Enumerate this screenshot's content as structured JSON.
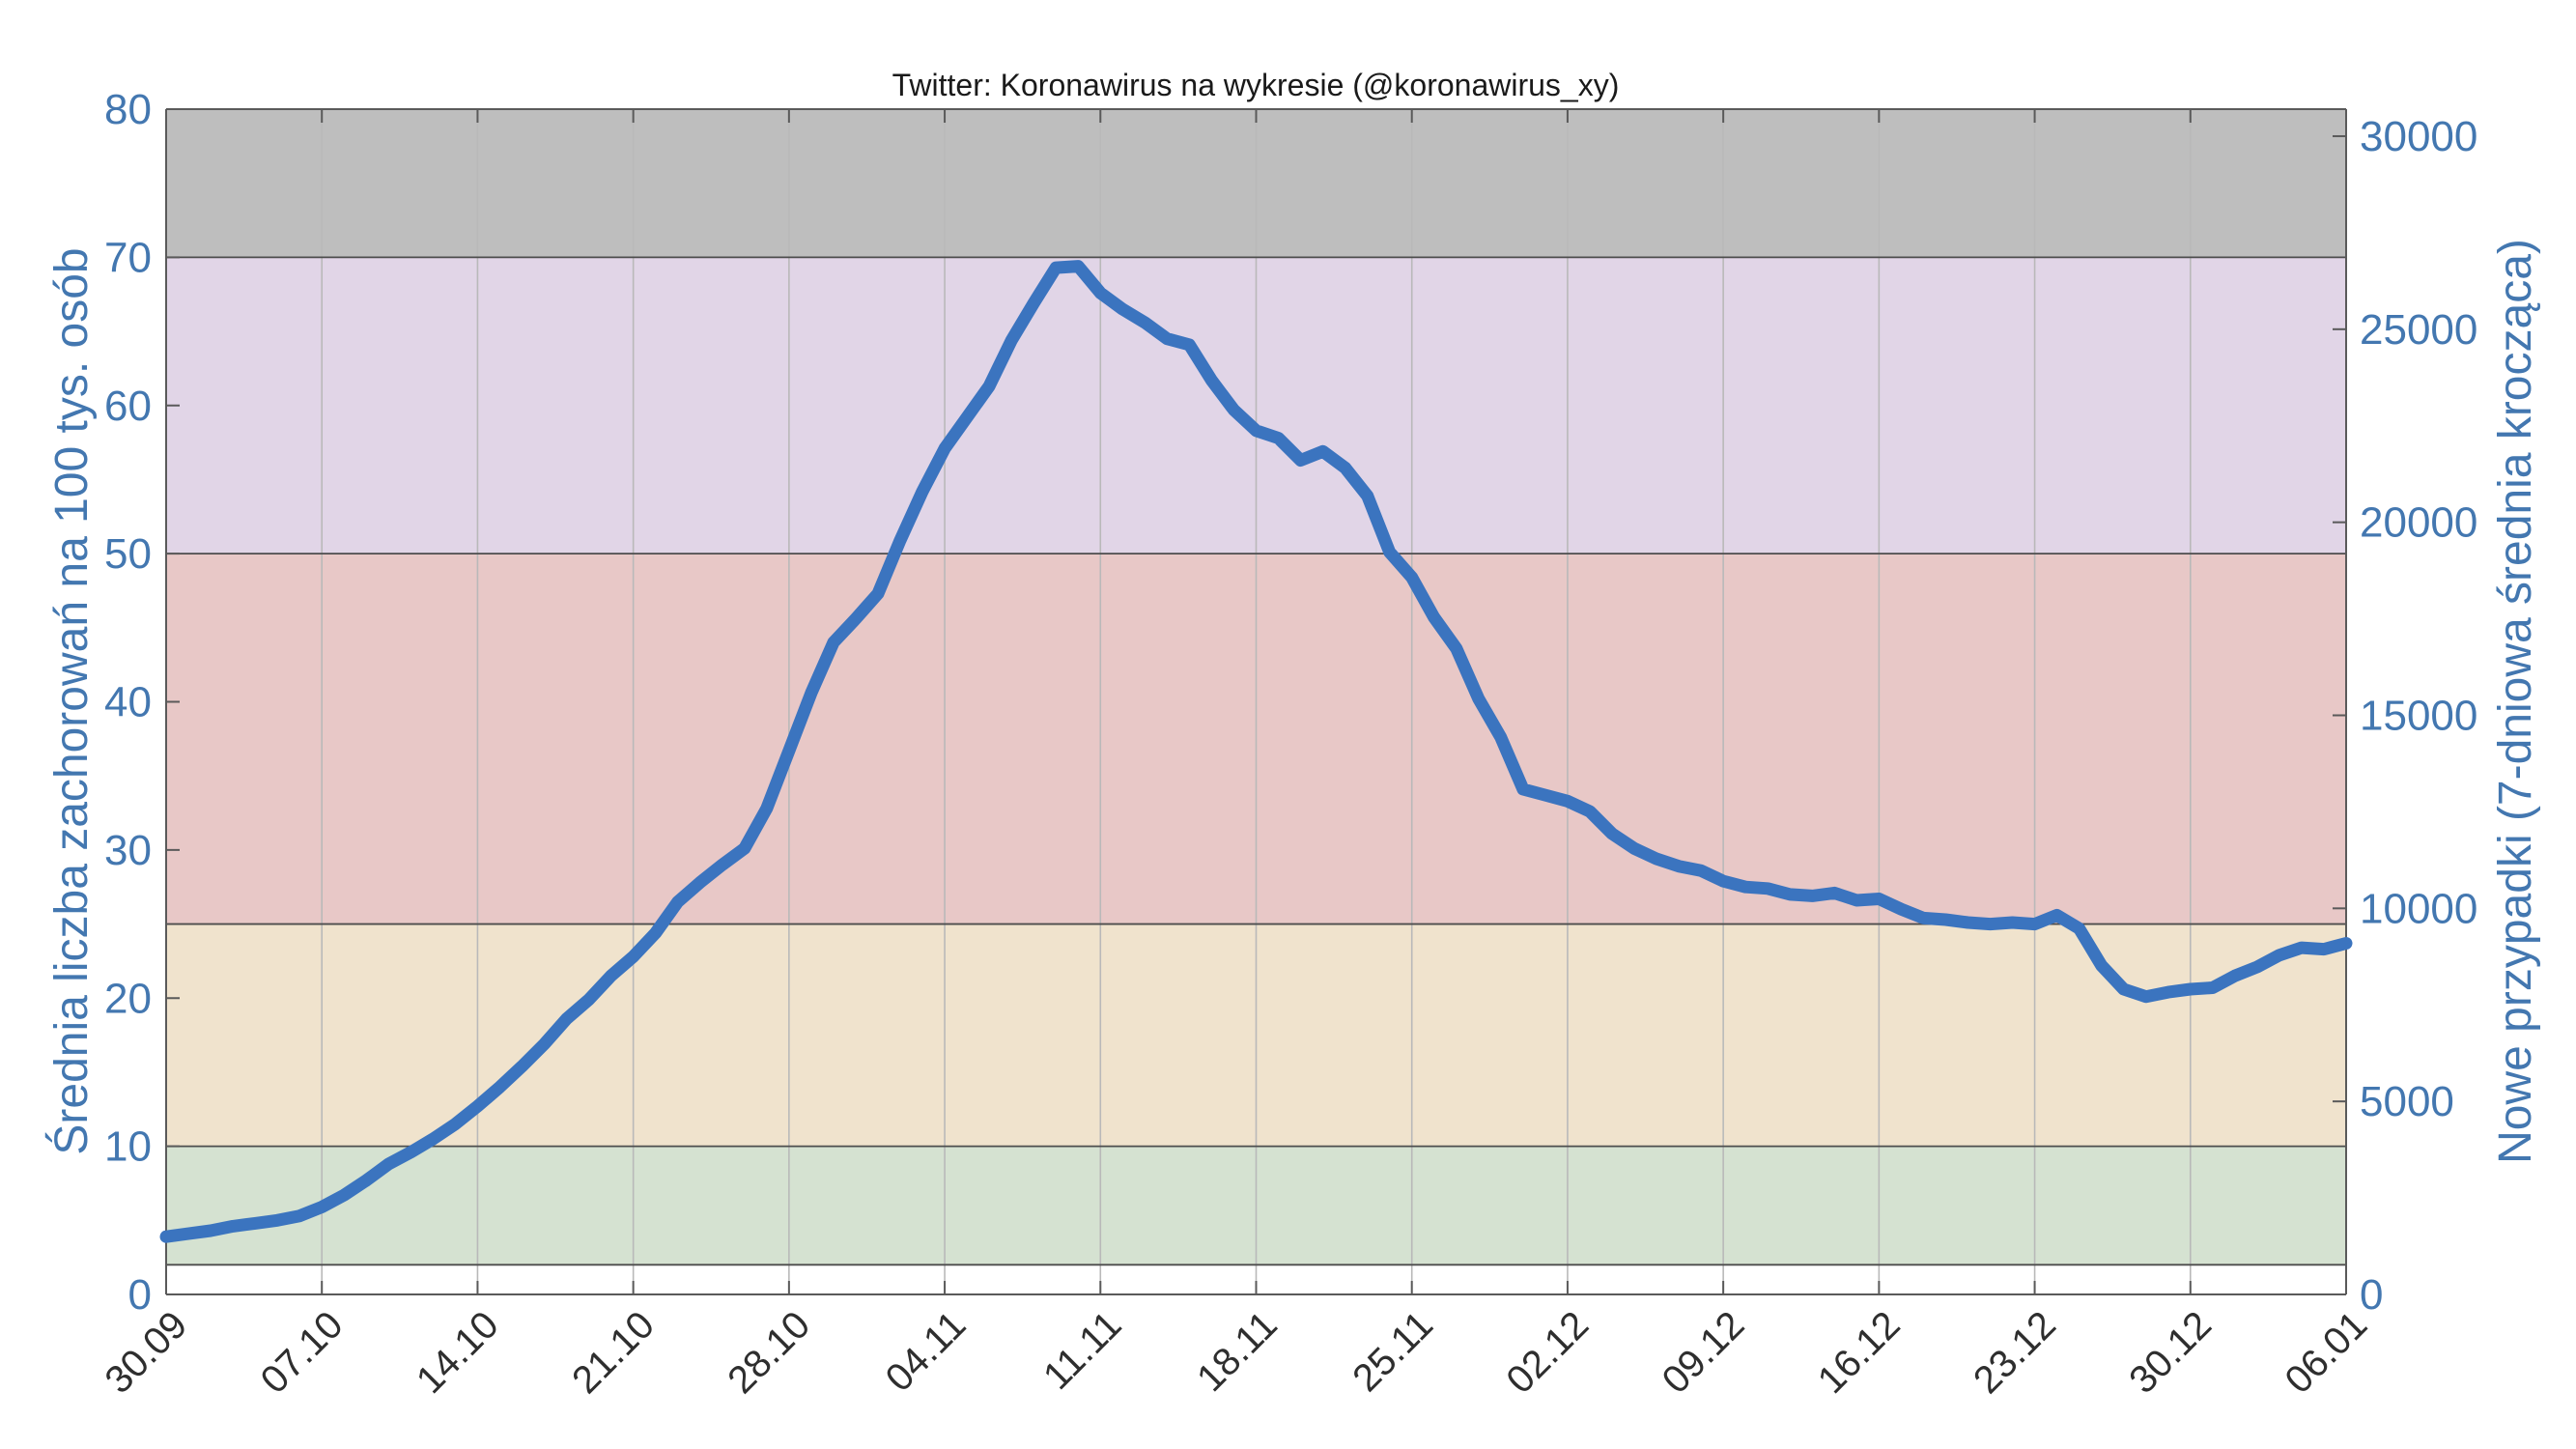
{
  "chart_data": {
    "type": "line",
    "title": "Twitter: Koronawirus na wykresie (@koronawirus_xy)",
    "ylabel": "Średnia liczba zachorowań na 100 tys. osób",
    "ylabel_right": "Nowe przypadki (7-dniowa średnia krocząca)",
    "x": [
      "30.09",
      "01.10",
      "02.10",
      "03.10",
      "04.10",
      "05.10",
      "06.10",
      "07.10",
      "08.10",
      "09.10",
      "10.10",
      "11.10",
      "12.10",
      "13.10",
      "14.10",
      "15.10",
      "16.10",
      "17.10",
      "18.10",
      "19.10",
      "20.10",
      "21.10",
      "22.10",
      "23.10",
      "24.10",
      "25.10",
      "26.10",
      "27.10",
      "28.10",
      "29.10",
      "30.10",
      "31.10",
      "01.11",
      "02.11",
      "03.11",
      "04.11",
      "05.11",
      "06.11",
      "07.11",
      "08.11",
      "09.11",
      "10.11",
      "11.11",
      "12.11",
      "13.11",
      "14.11",
      "15.11",
      "16.11",
      "17.11",
      "18.11",
      "19.11",
      "20.11",
      "21.11",
      "22.11",
      "23.11",
      "24.11",
      "25.11",
      "26.11",
      "27.11",
      "28.11",
      "29.11",
      "30.11",
      "01.12",
      "02.12",
      "03.12",
      "04.12",
      "05.12",
      "06.12",
      "07.12",
      "08.12",
      "09.12",
      "10.12",
      "11.12",
      "12.12",
      "13.12",
      "14.12",
      "15.12",
      "16.12",
      "17.12",
      "18.12",
      "19.12",
      "20.12",
      "21.12",
      "22.12",
      "23.12",
      "24.12",
      "25.12",
      "26.12",
      "27.12",
      "28.12",
      "29.12",
      "30.12",
      "31.12",
      "01.01",
      "02.01",
      "03.01",
      "04.01",
      "05.01",
      "06.01"
    ],
    "x_ticks": [
      "30.09",
      "07.10",
      "14.10",
      "21.10",
      "28.10",
      "04.11",
      "11.11",
      "18.11",
      "25.11",
      "02.12",
      "09.12",
      "16.12",
      "23.12",
      "30.12",
      "06.01"
    ],
    "ylim": [
      0,
      80
    ],
    "y_ticks": [
      0,
      10,
      20,
      30,
      40,
      50,
      60,
      70,
      80
    ],
    "ylim_right": [
      0,
      30700
    ],
    "y_ticks_right": [
      0,
      5000,
      10000,
      15000,
      20000,
      25000,
      30000
    ],
    "series": [
      {
        "color": "#3b74bf",
        "values": [
          3.9,
          4.1,
          4.3,
          4.6,
          4.8,
          5.0,
          5.3,
          5.9,
          6.7,
          7.7,
          8.8,
          9.6,
          10.5,
          11.5,
          12.7,
          14.0,
          15.4,
          16.9,
          18.6,
          19.9,
          21.5,
          22.8,
          24.4,
          26.5,
          27.8,
          29.0,
          30.1,
          32.8,
          36.7,
          40.6,
          44.0,
          45.6,
          47.3,
          50.9,
          54.2,
          57.1,
          59.2,
          61.3,
          64.4,
          66.9,
          69.3,
          69.4,
          67.6,
          66.5,
          65.6,
          64.5,
          64.1,
          61.7,
          59.7,
          58.3,
          57.8,
          56.3,
          56.9,
          55.8,
          53.9,
          50.1,
          48.4,
          45.7,
          43.6,
          40.2,
          37.6,
          34.1,
          33.7,
          33.3,
          32.6,
          31.1,
          30.1,
          29.4,
          28.9,
          28.6,
          27.9,
          27.5,
          27.4,
          27.0,
          26.9,
          27.1,
          26.6,
          26.7,
          26.0,
          25.4,
          25.3,
          25.1,
          25.0,
          25.1,
          25.0,
          25.6,
          24.7,
          22.2,
          20.6,
          20.1,
          20.4,
          20.6,
          20.7,
          21.5,
          22.1,
          22.9,
          23.4,
          23.3,
          23.7
        ]
      }
    ],
    "bands": [
      {
        "from": 2,
        "to": 10,
        "color": "#d5e2d1"
      },
      {
        "from": 10,
        "to": 25,
        "color": "#f0e3cd"
      },
      {
        "from": 25,
        "to": 50,
        "color": "#e8c8c7"
      },
      {
        "from": 50,
        "to": 70,
        "color": "#e1d5e7"
      },
      {
        "from": 70,
        "to": 80,
        "color": "#bebebe"
      }
    ],
    "grid": {
      "x": true,
      "y": false
    },
    "colors": {
      "y_axis_text": "#4377b0",
      "x_axis_text": "#2e2e2e",
      "title_text": "#1a1a1a",
      "frame": "#5a5a5a",
      "gridline": "#b9b9b9",
      "band_boundary": "#4d4d4d"
    }
  }
}
